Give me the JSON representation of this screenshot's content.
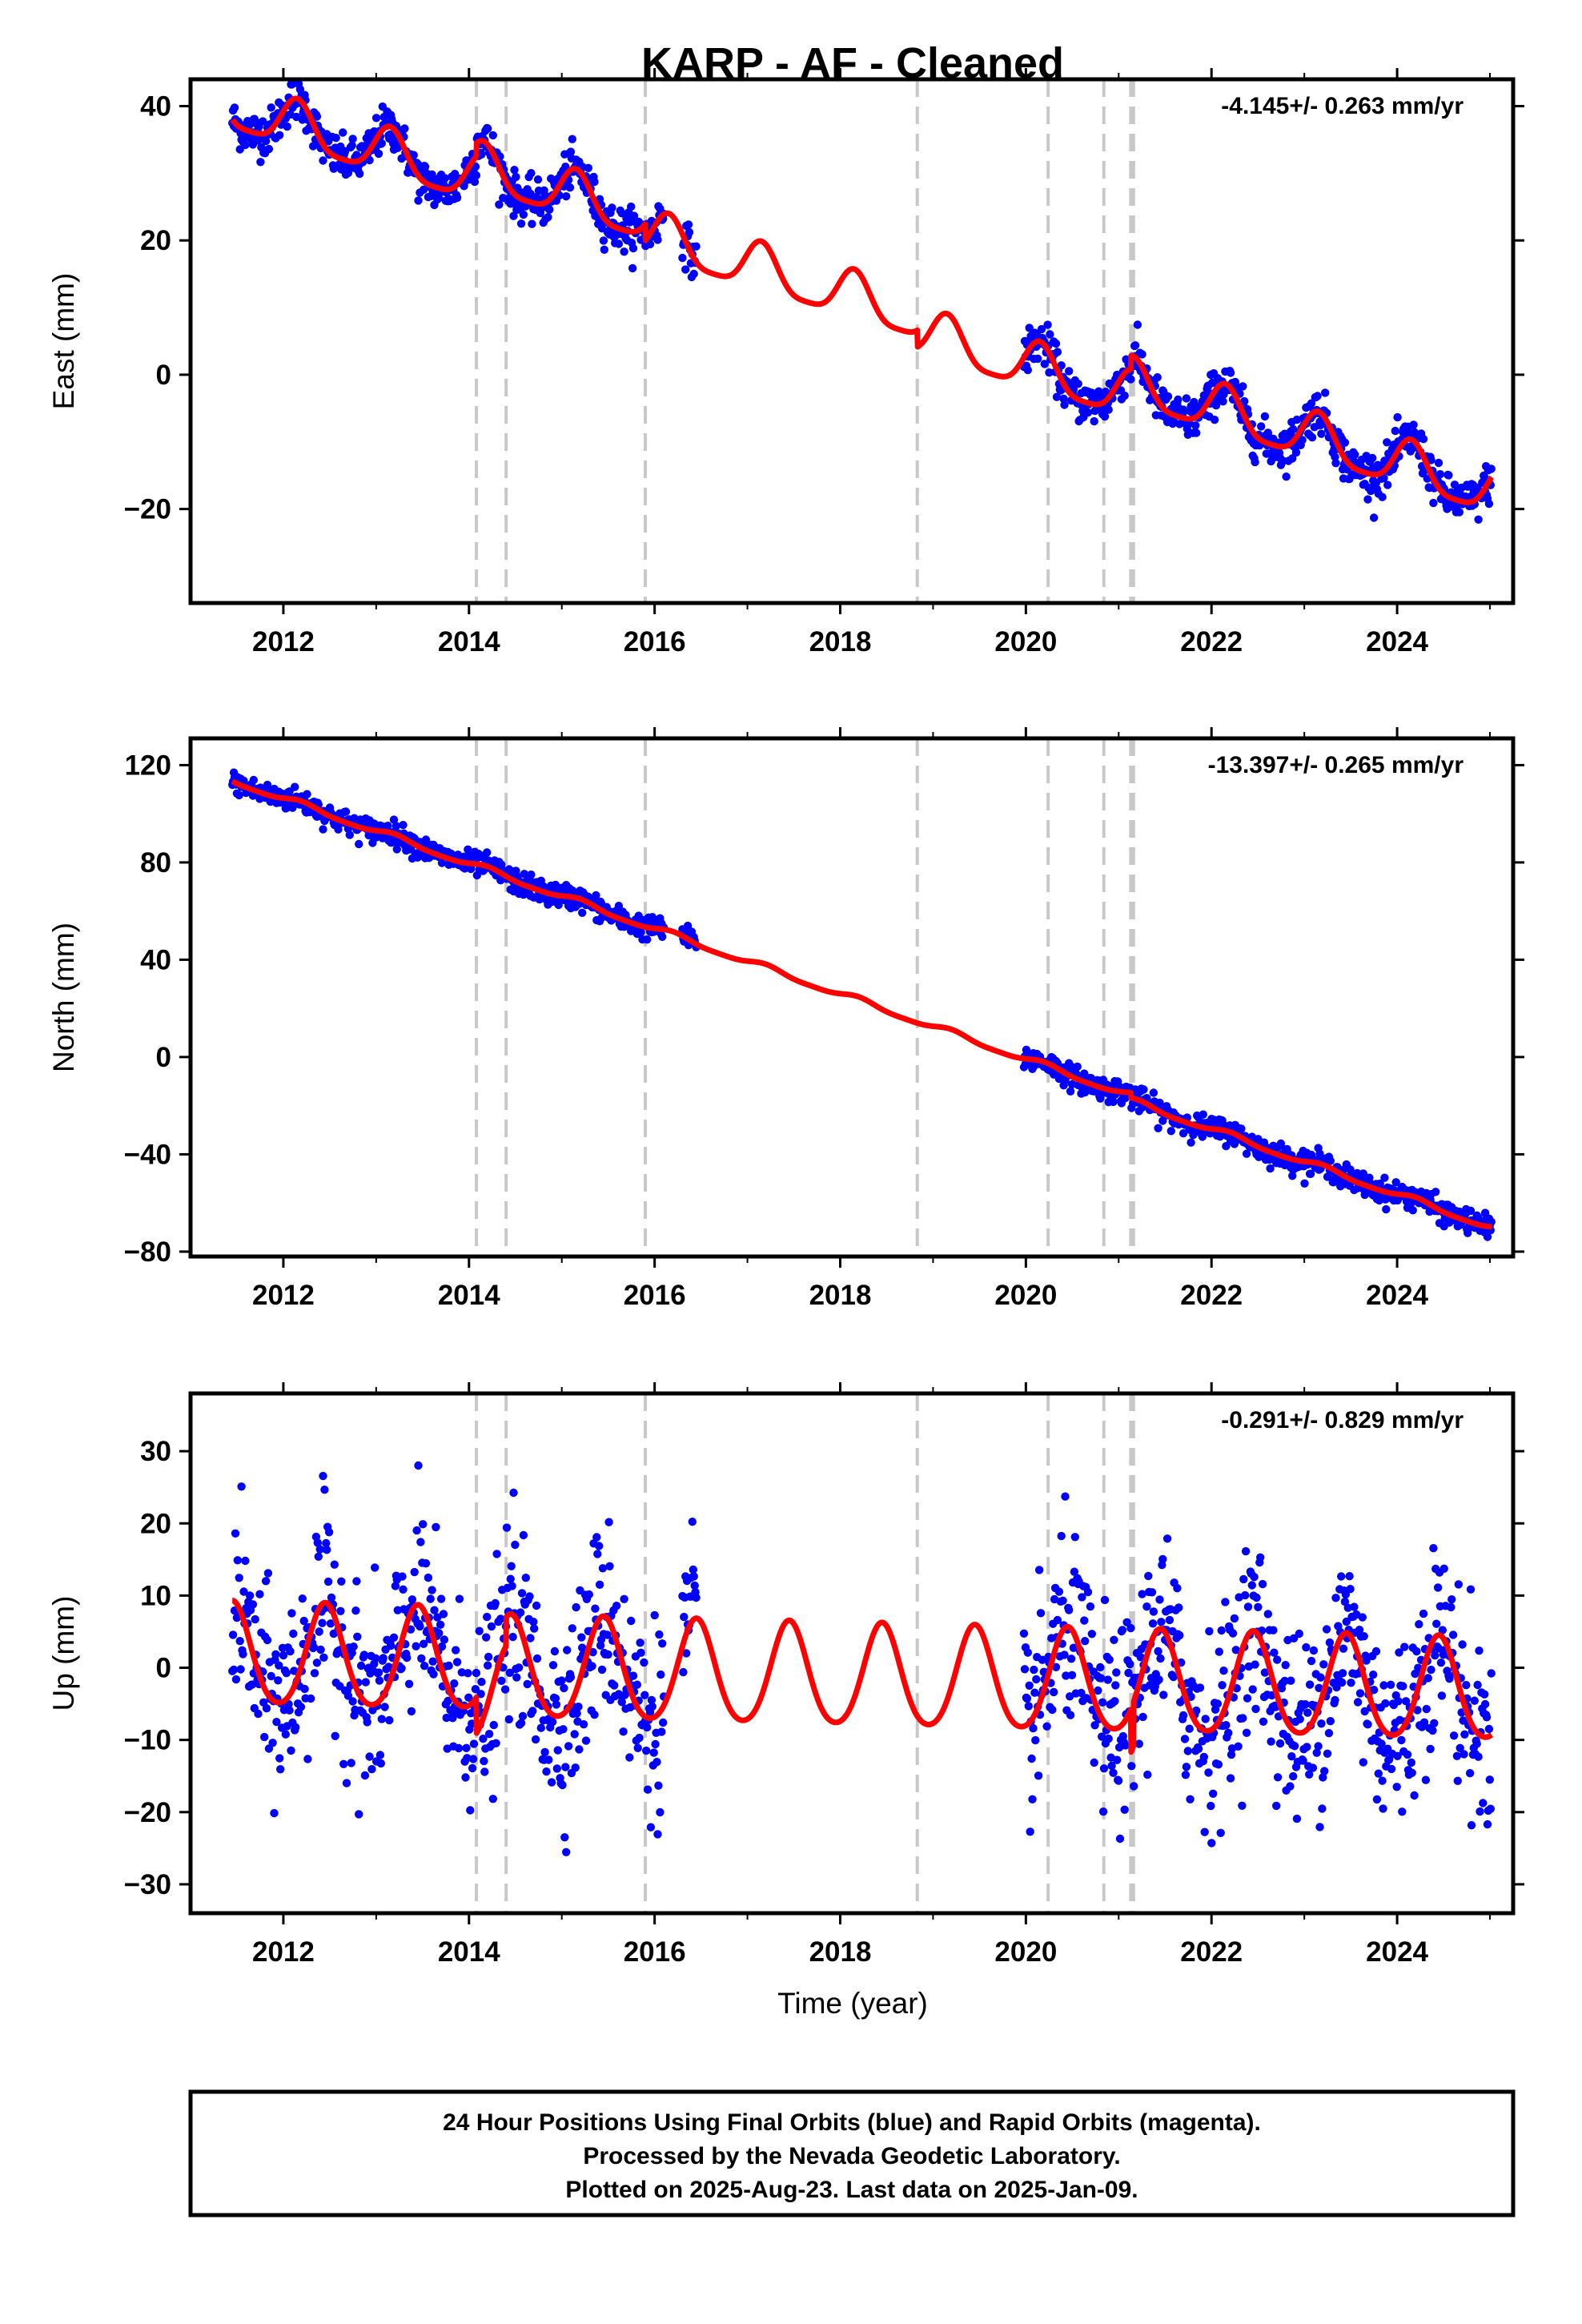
{
  "title": "KARP  - AF - Cleaned",
  "xlabel": "Time (year)",
  "footer": {
    "line1": "24 Hour Positions Using Final Orbits (blue) and Rapid Orbits (magenta).",
    "line2": "Processed by the Nevada Geodetic Laboratory.",
    "line3": "Plotted on 2025-Aug-23. Last data on 2025-Jan-09."
  },
  "colors": {
    "data": "#0000ff",
    "model": "#ff0000",
    "steps": "#c8c8c8",
    "frame": "#000000"
  },
  "chart_data": [
    {
      "type": "scatter",
      "component": "East",
      "ylabel": "East (mm)",
      "rate_label": "-4.145+/- 0.263 mm/yr",
      "xlim": [
        2011.0,
        2025.25
      ],
      "ylim": [
        -34,
        44
      ],
      "xticks": [
        2012,
        2014,
        2016,
        2018,
        2020,
        2022,
        2024
      ],
      "yticks": [
        40,
        20,
        0,
        -20
      ],
      "ytick_labels": [
        "40",
        "20",
        "0",
        "−20"
      ],
      "step_lines": [
        2014.08,
        2014.4,
        2015.9,
        2018.83,
        2020.24,
        2020.84,
        2021.13,
        2021.16
      ],
      "data_segments": [
        [
          2011.45,
          2016.1
        ],
        [
          2016.3,
          2016.45
        ],
        [
          2019.98,
          2025.02
        ]
      ],
      "scatter_sd": 1.6,
      "model": {
        "rate": -4.145,
        "ref_year": 2011.5,
        "intercept": 39.5,
        "annual": 3.5,
        "phase": 2012.15,
        "semiannual": 0.8,
        "offsets": [
          {
            "year": 2014.08,
            "value": 2.0
          },
          {
            "year": 2015.9,
            "value": -2.5
          },
          {
            "year": 2018.83,
            "value": -2.5
          },
          {
            "year": 2021.13,
            "value": 2.0
          }
        ]
      }
    },
    {
      "type": "scatter",
      "component": "North",
      "ylabel": "North (mm)",
      "rate_label": "-13.397+/- 0.265 mm/yr",
      "xlim": [
        2011.0,
        2025.25
      ],
      "ylim": [
        -82,
        131
      ],
      "xticks": [
        2012,
        2014,
        2016,
        2018,
        2020,
        2022,
        2024
      ],
      "yticks": [
        120,
        80,
        40,
        0,
        -40,
        -80
      ],
      "ytick_labels": [
        "120",
        "80",
        "40",
        "0",
        "−40",
        "−80"
      ],
      "step_lines": [
        2014.08,
        2014.4,
        2015.9,
        2018.83,
        2020.24,
        2020.84,
        2021.13,
        2021.16
      ],
      "data_segments": [
        [
          2011.45,
          2016.1
        ],
        [
          2016.3,
          2016.45
        ],
        [
          2019.98,
          2025.02
        ]
      ],
      "scatter_sd": 2.4,
      "model": {
        "rate": -13.397,
        "ref_year": 2011.5,
        "intercept": 113.0,
        "annual": 1.2,
        "phase": 2012.2,
        "semiannual": 0.3,
        "offsets": [
          {
            "year": 2021.13,
            "value": -2.0
          }
        ]
      }
    },
    {
      "type": "scatter",
      "component": "Up",
      "ylabel": "Up (mm)",
      "rate_label": "-0.291+/- 0.829 mm/yr",
      "xlim": [
        2011.0,
        2025.25
      ],
      "ylim": [
        -34,
        38
      ],
      "xticks": [
        2012,
        2014,
        2016,
        2018,
        2020,
        2022,
        2024
      ],
      "yticks": [
        30,
        20,
        10,
        0,
        -10,
        -20,
        -30
      ],
      "ytick_labels": [
        "30",
        "20",
        "10",
        "0",
        "−10",
        "−20",
        "−30"
      ],
      "step_lines": [
        2014.08,
        2014.4,
        2015.9,
        2018.83,
        2020.24,
        2020.84,
        2021.13,
        2021.16
      ],
      "data_segments": [
        [
          2011.45,
          2016.1
        ],
        [
          2016.3,
          2016.45
        ],
        [
          2019.98,
          2025.02
        ]
      ],
      "scatter_sd": 6.5,
      "model": {
        "rate": -0.291,
        "ref_year": 2011.5,
        "intercept": 1.5,
        "annual": 7.0,
        "phase": 2012.45,
        "semiannual": 0.8,
        "offsets": [
          {
            "year": 2014.08,
            "value": -5.0
          },
          {
            "year": 2014.4,
            "value": 4.0
          },
          {
            "year": 2021.13,
            "value": -6.0
          },
          {
            "year": 2021.16,
            "value": 6.0
          }
        ]
      }
    }
  ]
}
